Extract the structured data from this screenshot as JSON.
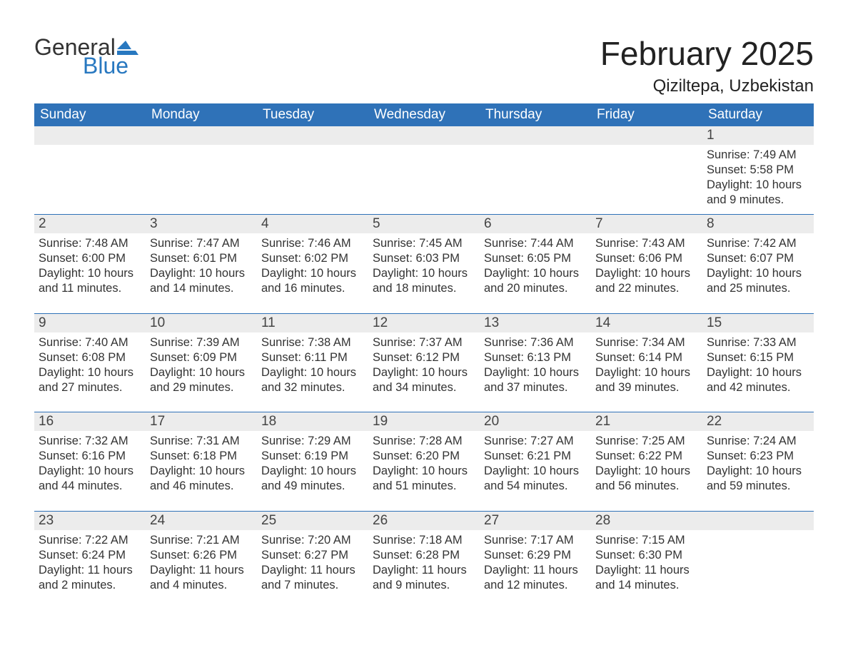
{
  "logo": {
    "word1": "General",
    "word2": "Blue",
    "brand_color": "#2878c0",
    "text_color": "#333333"
  },
  "title": "February 2025",
  "subtitle": "Qiziltepa, Uzbekistan",
  "header_bg": "#2f72b8",
  "header_fg": "#ffffff",
  "row_stripe": "#ececec",
  "rule_color": "#2f72b8",
  "days_of_week": [
    "Sunday",
    "Monday",
    "Tuesday",
    "Wednesday",
    "Thursday",
    "Friday",
    "Saturday"
  ],
  "weeks": [
    [
      null,
      null,
      null,
      null,
      null,
      null,
      {
        "n": "1",
        "sunrise": "Sunrise: 7:49 AM",
        "sunset": "Sunset: 5:58 PM",
        "daylight": "Daylight: 10 hours and 9 minutes."
      }
    ],
    [
      {
        "n": "2",
        "sunrise": "Sunrise: 7:48 AM",
        "sunset": "Sunset: 6:00 PM",
        "daylight": "Daylight: 10 hours and 11 minutes."
      },
      {
        "n": "3",
        "sunrise": "Sunrise: 7:47 AM",
        "sunset": "Sunset: 6:01 PM",
        "daylight": "Daylight: 10 hours and 14 minutes."
      },
      {
        "n": "4",
        "sunrise": "Sunrise: 7:46 AM",
        "sunset": "Sunset: 6:02 PM",
        "daylight": "Daylight: 10 hours and 16 minutes."
      },
      {
        "n": "5",
        "sunrise": "Sunrise: 7:45 AM",
        "sunset": "Sunset: 6:03 PM",
        "daylight": "Daylight: 10 hours and 18 minutes."
      },
      {
        "n": "6",
        "sunrise": "Sunrise: 7:44 AM",
        "sunset": "Sunset: 6:05 PM",
        "daylight": "Daylight: 10 hours and 20 minutes."
      },
      {
        "n": "7",
        "sunrise": "Sunrise: 7:43 AM",
        "sunset": "Sunset: 6:06 PM",
        "daylight": "Daylight: 10 hours and 22 minutes."
      },
      {
        "n": "8",
        "sunrise": "Sunrise: 7:42 AM",
        "sunset": "Sunset: 6:07 PM",
        "daylight": "Daylight: 10 hours and 25 minutes."
      }
    ],
    [
      {
        "n": "9",
        "sunrise": "Sunrise: 7:40 AM",
        "sunset": "Sunset: 6:08 PM",
        "daylight": "Daylight: 10 hours and 27 minutes."
      },
      {
        "n": "10",
        "sunrise": "Sunrise: 7:39 AM",
        "sunset": "Sunset: 6:09 PM",
        "daylight": "Daylight: 10 hours and 29 minutes."
      },
      {
        "n": "11",
        "sunrise": "Sunrise: 7:38 AM",
        "sunset": "Sunset: 6:11 PM",
        "daylight": "Daylight: 10 hours and 32 minutes."
      },
      {
        "n": "12",
        "sunrise": "Sunrise: 7:37 AM",
        "sunset": "Sunset: 6:12 PM",
        "daylight": "Daylight: 10 hours and 34 minutes."
      },
      {
        "n": "13",
        "sunrise": "Sunrise: 7:36 AM",
        "sunset": "Sunset: 6:13 PM",
        "daylight": "Daylight: 10 hours and 37 minutes."
      },
      {
        "n": "14",
        "sunrise": "Sunrise: 7:34 AM",
        "sunset": "Sunset: 6:14 PM",
        "daylight": "Daylight: 10 hours and 39 minutes."
      },
      {
        "n": "15",
        "sunrise": "Sunrise: 7:33 AM",
        "sunset": "Sunset: 6:15 PM",
        "daylight": "Daylight: 10 hours and 42 minutes."
      }
    ],
    [
      {
        "n": "16",
        "sunrise": "Sunrise: 7:32 AM",
        "sunset": "Sunset: 6:16 PM",
        "daylight": "Daylight: 10 hours and 44 minutes."
      },
      {
        "n": "17",
        "sunrise": "Sunrise: 7:31 AM",
        "sunset": "Sunset: 6:18 PM",
        "daylight": "Daylight: 10 hours and 46 minutes."
      },
      {
        "n": "18",
        "sunrise": "Sunrise: 7:29 AM",
        "sunset": "Sunset: 6:19 PM",
        "daylight": "Daylight: 10 hours and 49 minutes."
      },
      {
        "n": "19",
        "sunrise": "Sunrise: 7:28 AM",
        "sunset": "Sunset: 6:20 PM",
        "daylight": "Daylight: 10 hours and 51 minutes."
      },
      {
        "n": "20",
        "sunrise": "Sunrise: 7:27 AM",
        "sunset": "Sunset: 6:21 PM",
        "daylight": "Daylight: 10 hours and 54 minutes."
      },
      {
        "n": "21",
        "sunrise": "Sunrise: 7:25 AM",
        "sunset": "Sunset: 6:22 PM",
        "daylight": "Daylight: 10 hours and 56 minutes."
      },
      {
        "n": "22",
        "sunrise": "Sunrise: 7:24 AM",
        "sunset": "Sunset: 6:23 PM",
        "daylight": "Daylight: 10 hours and 59 minutes."
      }
    ],
    [
      {
        "n": "23",
        "sunrise": "Sunrise: 7:22 AM",
        "sunset": "Sunset: 6:24 PM",
        "daylight": "Daylight: 11 hours and 2 minutes."
      },
      {
        "n": "24",
        "sunrise": "Sunrise: 7:21 AM",
        "sunset": "Sunset: 6:26 PM",
        "daylight": "Daylight: 11 hours and 4 minutes."
      },
      {
        "n": "25",
        "sunrise": "Sunrise: 7:20 AM",
        "sunset": "Sunset: 6:27 PM",
        "daylight": "Daylight: 11 hours and 7 minutes."
      },
      {
        "n": "26",
        "sunrise": "Sunrise: 7:18 AM",
        "sunset": "Sunset: 6:28 PM",
        "daylight": "Daylight: 11 hours and 9 minutes."
      },
      {
        "n": "27",
        "sunrise": "Sunrise: 7:17 AM",
        "sunset": "Sunset: 6:29 PM",
        "daylight": "Daylight: 11 hours and 12 minutes."
      },
      {
        "n": "28",
        "sunrise": "Sunrise: 7:15 AM",
        "sunset": "Sunset: 6:30 PM",
        "daylight": "Daylight: 11 hours and 14 minutes."
      },
      null
    ]
  ]
}
